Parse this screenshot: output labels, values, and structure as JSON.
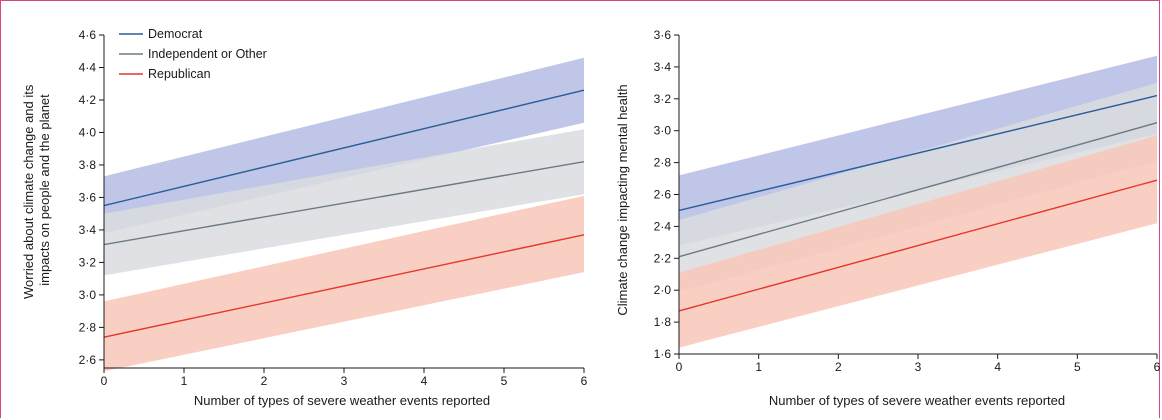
{
  "colors": {
    "democrat": "#2b5d9a",
    "independent": "#6b7b80",
    "republican": "#e5372b",
    "democrat_band": "#b4bce3",
    "independent_band": "#dadcdf",
    "republican_band": "#f9c7b8",
    "frame": "#d6477d"
  },
  "chart_data": [
    {
      "type": "line",
      "xlabel": "Number of types of severe weather events reported",
      "ylabel_lines": [
        "Worried about climate change and its",
        "impacts on people and the planet"
      ],
      "xlim": [
        0,
        6
      ],
      "ylim": [
        2.55,
        4.6
      ],
      "x_ticks": [
        0,
        1,
        2,
        3,
        4,
        5,
        6
      ],
      "x_tick_labels": [
        "0",
        "1",
        "2",
        "3",
        "4",
        "5",
        "6"
      ],
      "y_ticks": [
        2.6,
        2.8,
        3.0,
        3.2,
        3.4,
        3.6,
        3.8,
        4.0,
        4.2,
        4.4,
        4.6
      ],
      "y_tick_labels": [
        "2·6",
        "2·8",
        "3·0",
        "3·2",
        "3·4",
        "3·6",
        "3·8",
        "4·0",
        "4·2",
        "4·4",
        "4·6"
      ],
      "grid": false,
      "legend_position": "top-left",
      "series": [
        {
          "name": "Democrat",
          "color_key": "democrat",
          "band_key": "democrat_band",
          "x": [
            0,
            6
          ],
          "y": [
            3.55,
            4.26
          ],
          "lower": [
            3.38,
            4.06
          ],
          "upper": [
            3.73,
            4.46
          ]
        },
        {
          "name": "Independent or Other",
          "color_key": "independent",
          "band_key": "independent_band",
          "x": [
            0,
            6
          ],
          "y": [
            3.31,
            3.82
          ],
          "lower": [
            3.12,
            3.62
          ],
          "upper": [
            3.5,
            4.02
          ]
        },
        {
          "name": "Republican",
          "color_key": "republican",
          "band_key": "republican_band",
          "x": [
            0,
            6
          ],
          "y": [
            2.74,
            3.37
          ],
          "lower": [
            2.53,
            3.14
          ],
          "upper": [
            2.96,
            3.61
          ]
        }
      ]
    },
    {
      "type": "line",
      "xlabel": "Number of types of severe weather events reported",
      "ylabel_lines": [
        "Climate change impacting mental health"
      ],
      "xlim": [
        0,
        6
      ],
      "ylim": [
        1.6,
        3.6
      ],
      "x_ticks": [
        0,
        1,
        2,
        3,
        4,
        5,
        6
      ],
      "x_tick_labels": [
        "0",
        "1",
        "2",
        "3",
        "4",
        "5",
        "6"
      ],
      "y_ticks": [
        1.6,
        1.8,
        2.0,
        2.2,
        2.4,
        2.6,
        2.8,
        3.0,
        3.2,
        3.4,
        3.6
      ],
      "y_tick_labels": [
        "1·6",
        "1·8",
        "2·0",
        "2·2",
        "2·4",
        "2·6",
        "2·8",
        "3·0",
        "3·2",
        "3·4",
        "3·6"
      ],
      "grid": false,
      "series": [
        {
          "name": "Democrat",
          "color_key": "democrat",
          "band_key": "democrat_band",
          "x": [
            0,
            6
          ],
          "y": [
            2.5,
            3.22
          ],
          "lower": [
            2.28,
            2.98
          ],
          "upper": [
            2.72,
            3.47
          ]
        },
        {
          "name": "Independent or Other",
          "color_key": "independent",
          "band_key": "independent_band",
          "x": [
            0,
            6
          ],
          "y": [
            2.21,
            3.05
          ],
          "lower": [
            1.99,
            2.81
          ],
          "upper": [
            2.44,
            3.3
          ]
        },
        {
          "name": "Republican",
          "color_key": "republican",
          "band_key": "republican_band",
          "x": [
            0,
            6
          ],
          "y": [
            1.87,
            2.69
          ],
          "lower": [
            1.64,
            2.42
          ],
          "upper": [
            2.11,
            2.97
          ]
        }
      ]
    }
  ]
}
